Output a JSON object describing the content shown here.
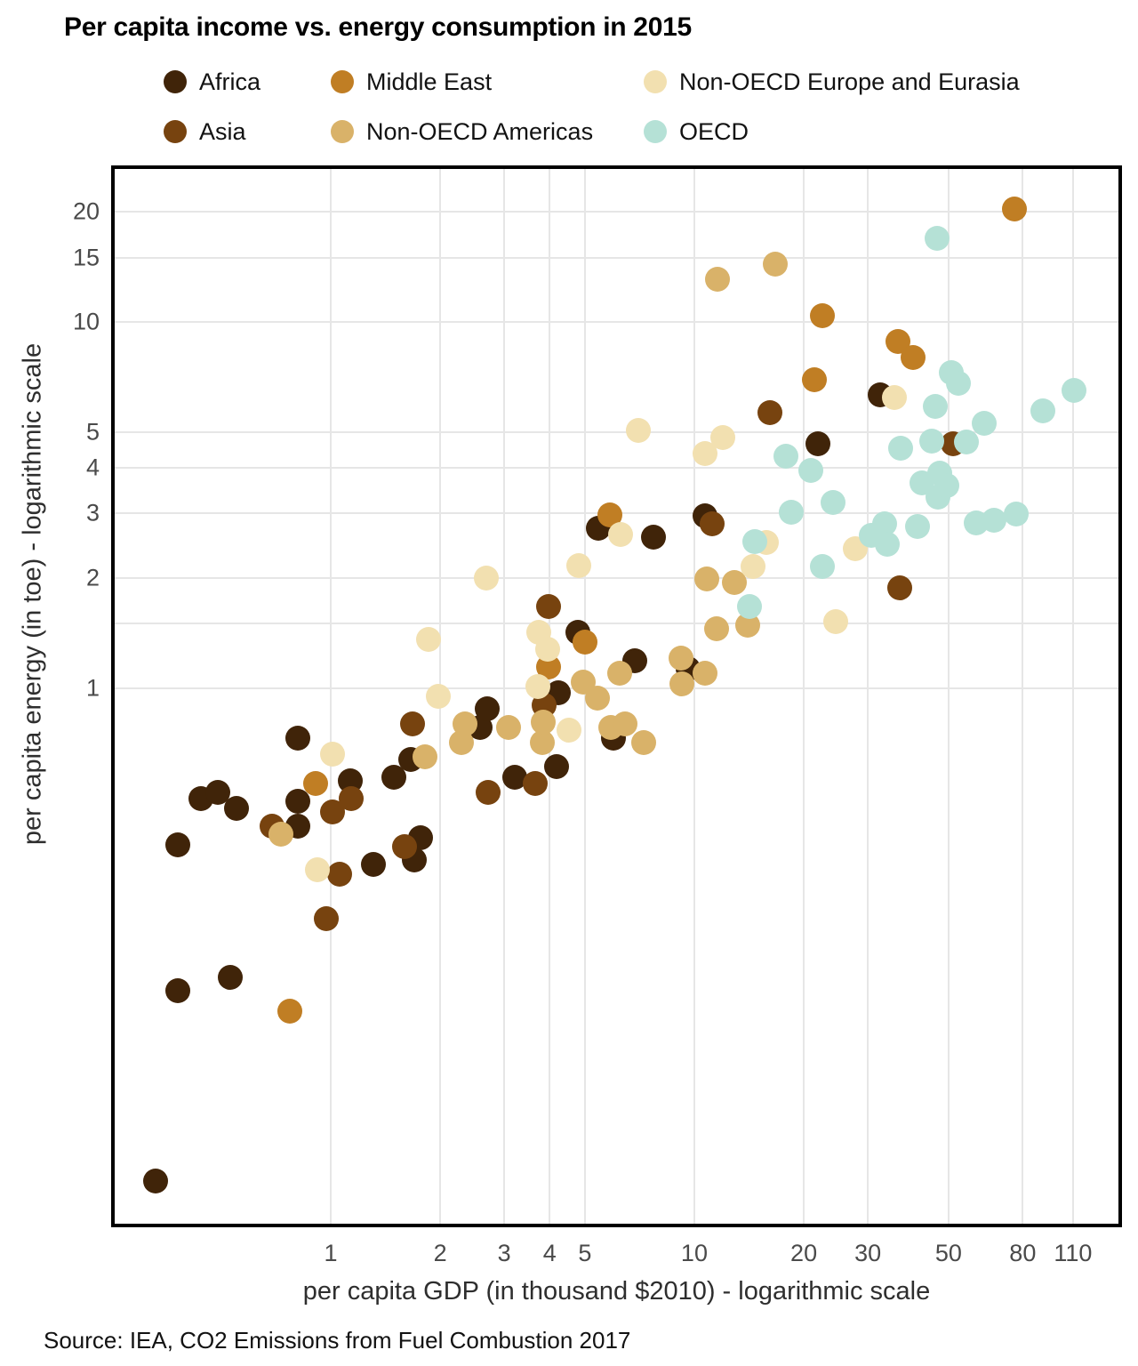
{
  "title": "Per capita income vs. energy consumption in 2015",
  "source_note": "Source: IEA, CO2 Emissions from Fuel Combustion 2017",
  "legend": {
    "columns": [
      [
        "Africa",
        "Asia"
      ],
      [
        "Middle East",
        "Non-OECD Americas"
      ],
      [
        "Non-OECD Europe and Eurasia",
        "OECD"
      ]
    ]
  },
  "chart_data": {
    "type": "scatter",
    "title": "Per capita income vs. energy consumption in 2015",
    "xlabel": "per capita GDP (in thousand $2010) - logarithmic scale",
    "ylabel": "per capita energy (in toe) - logarithmic scale",
    "x_scale": "log",
    "y_scale": "log",
    "x_domain": [
      0.249,
      150
    ],
    "y_domain": [
      0.0337,
      26.8
    ],
    "x_ticks": [
      1,
      2,
      3,
      4,
      5,
      10,
      20,
      30,
      50,
      80,
      110
    ],
    "y_ticks": [
      1,
      2,
      3,
      4,
      5,
      10,
      15,
      20
    ],
    "y_unlabeled_gridlines": [
      1.5
    ],
    "grid": true,
    "legend_position": "top",
    "series": [
      {
        "name": "Africa",
        "color": "#402409",
        "points": [
          [
            0.33,
            0.045
          ],
          [
            0.38,
            0.149
          ],
          [
            0.53,
            0.162
          ],
          [
            0.38,
            0.374
          ],
          [
            0.44,
            0.5
          ],
          [
            0.49,
            0.52
          ],
          [
            0.55,
            0.47
          ],
          [
            0.81,
            0.49
          ],
          [
            0.81,
            0.42
          ],
          [
            0.81,
            0.73
          ],
          [
            1.13,
            0.56
          ],
          [
            1.31,
            0.33
          ],
          [
            1.49,
            0.57
          ],
          [
            1.66,
            0.64
          ],
          [
            1.7,
            0.34
          ],
          [
            1.77,
            0.39
          ],
          [
            2.58,
            0.78
          ],
          [
            2.69,
            0.88
          ],
          [
            3.21,
            0.57
          ],
          [
            4.18,
            0.61
          ],
          [
            4.23,
            0.97
          ],
          [
            4.78,
            1.42
          ],
          [
            5.44,
            2.74
          ],
          [
            5.99,
            0.73
          ],
          [
            6.86,
            1.19
          ],
          [
            7.72,
            2.59
          ],
          [
            9.61,
            1.13
          ],
          [
            10.7,
            2.96
          ],
          [
            21.9,
            4.66
          ],
          [
            32.4,
            6.34
          ]
        ]
      },
      {
        "name": "Asia",
        "color": "#77430f",
        "points": [
          [
            0.69,
            0.42
          ],
          [
            0.97,
            0.235
          ],
          [
            1.01,
            0.46
          ],
          [
            1.06,
            0.31
          ],
          [
            1.14,
            0.5
          ],
          [
            1.6,
            0.37
          ],
          [
            1.68,
            0.8
          ],
          [
            2.71,
            0.52
          ],
          [
            3.65,
            0.55
          ],
          [
            3.86,
            0.9
          ],
          [
            3.97,
            1.67
          ],
          [
            11.2,
            2.82
          ],
          [
            16.1,
            5.67
          ],
          [
            36.7,
            1.88
          ],
          [
            51.5,
            4.66
          ]
        ]
      },
      {
        "name": "Middle East",
        "color": "#c07e24",
        "points": [
          [
            0.77,
            0.131
          ],
          [
            0.91,
            0.55
          ],
          [
            3.97,
            1.14
          ],
          [
            5.0,
            1.34
          ],
          [
            5.86,
            2.97
          ],
          [
            21.4,
            6.97
          ],
          [
            22.5,
            10.4
          ],
          [
            36.3,
            8.83
          ],
          [
            39.9,
            8.02
          ],
          [
            75.9,
            20.4
          ]
        ]
      },
      {
        "name": "Non-OECD Americas",
        "color": "#d9b269",
        "points": [
          [
            0.73,
            0.4
          ],
          [
            1.82,
            0.65
          ],
          [
            2.29,
            0.71
          ],
          [
            2.34,
            0.8
          ],
          [
            3.08,
            0.78
          ],
          [
            3.82,
            0.71
          ],
          [
            3.84,
            0.81
          ],
          [
            4.95,
            1.04
          ],
          [
            5.41,
            0.94
          ],
          [
            5.89,
            0.78
          ],
          [
            6.23,
            1.1
          ],
          [
            6.45,
            0.8
          ],
          [
            7.25,
            0.71
          ],
          [
            9.19,
            1.21
          ],
          [
            9.24,
            1.03
          ],
          [
            10.7,
            1.1
          ],
          [
            10.8,
            1.99
          ],
          [
            11.5,
            1.45
          ],
          [
            12.9,
            1.94
          ],
          [
            14.0,
            1.49
          ],
          [
            11.6,
            13.1
          ],
          [
            16.7,
            14.4
          ]
        ]
      },
      {
        "name": "Non-OECD Europe and Eurasia",
        "color": "#f2e0b0",
        "points": [
          [
            0.92,
            0.32
          ],
          [
            1.01,
            0.66
          ],
          [
            1.86,
            1.36
          ],
          [
            1.98,
            0.95
          ],
          [
            2.68,
            2.0
          ],
          [
            3.72,
            1.01
          ],
          [
            3.73,
            1.42
          ],
          [
            3.95,
            1.28
          ],
          [
            4.52,
            0.77
          ],
          [
            4.81,
            2.16
          ],
          [
            6.27,
            2.63
          ],
          [
            7.01,
            5.07
          ],
          [
            10.7,
            4.38
          ],
          [
            12.0,
            4.85
          ],
          [
            14.5,
            2.15
          ],
          [
            15.8,
            2.5
          ],
          [
            24.5,
            1.52
          ],
          [
            27.7,
            2.41
          ],
          [
            35.5,
            6.24
          ]
        ]
      },
      {
        "name": "OECD",
        "color": "#b5e1d6",
        "points": [
          [
            14.2,
            1.67
          ],
          [
            14.7,
            2.52
          ],
          [
            17.9,
            4.31
          ],
          [
            18.5,
            3.03
          ],
          [
            20.9,
            3.94
          ],
          [
            22.5,
            2.15
          ],
          [
            24.1,
            3.22
          ],
          [
            30.7,
            2.62
          ],
          [
            33.4,
            2.82
          ],
          [
            33.9,
            2.47
          ],
          [
            36.9,
            4.53
          ],
          [
            41.1,
            2.77
          ],
          [
            42.3,
            3.64
          ],
          [
            44.9,
            4.74
          ],
          [
            46.0,
            5.9
          ],
          [
            46.8,
            3.33
          ],
          [
            47.2,
            3.87
          ],
          [
            49.5,
            3.58
          ],
          [
            50.9,
            7.26
          ],
          [
            53.2,
            6.82
          ],
          [
            56.0,
            4.7
          ],
          [
            59.6,
            2.83
          ],
          [
            62.7,
            5.3
          ],
          [
            66.7,
            2.88
          ],
          [
            76.8,
            2.99
          ],
          [
            90.9,
            5.73
          ],
          [
            110.7,
            6.52
          ],
          [
            46.5,
            16.9
          ]
        ]
      }
    ]
  }
}
